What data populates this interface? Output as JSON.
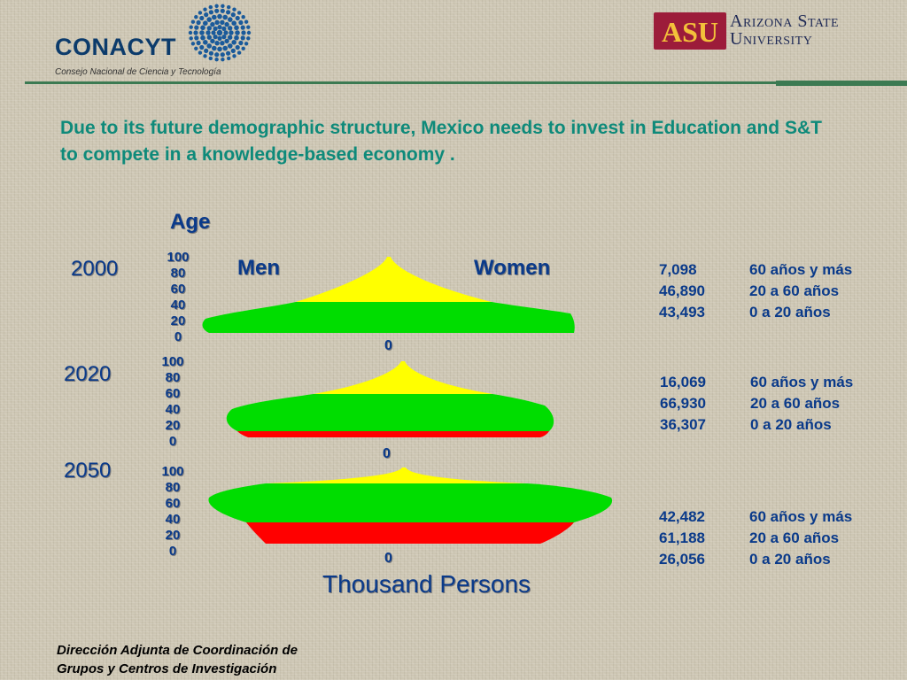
{
  "header": {
    "conacyt": {
      "name": "CONACYT",
      "subtitle": "Consejo Nacional de Ciencia y Tecnología"
    },
    "asu": {
      "mark": "ASU",
      "name_line1": "Arizona State",
      "name_line2": "University"
    }
  },
  "headline": "Due to its future demographic structure, Mexico needs to invest in Education and S&T to compete in a knowledge-based economy .",
  "age_title": "Age",
  "men_label": "Men",
  "women_label": "Women",
  "x_axis_label": "Thousand Persons",
  "age_ticks": [
    "100",
    "80",
    "60",
    "40",
    "20",
    "0"
  ],
  "zero_label": "0",
  "colors": {
    "old": "#ffff00",
    "adult": "#00dd00",
    "young": "#ff0000",
    "text": "#0a3a8a",
    "headline": "#0e8a7a",
    "divider": "#3c7a52"
  },
  "chart_data": {
    "type": "population-pyramid",
    "title": "",
    "xlabel": "Thousand Persons",
    "ylabel": "Age",
    "categories": [
      "60 años y más",
      "20 a 60 años",
      "0 a 20 años"
    ],
    "pyramids": [
      {
        "year": "2000",
        "stats": [
          {
            "value": "7,098",
            "label": "60 años y más"
          },
          {
            "value": "46,890",
            "label": "20 a 60 años"
          },
          {
            "value": "43,493",
            "label": "0 a 20 años"
          }
        ]
      },
      {
        "year": "2020",
        "stats": [
          {
            "value": "16,069",
            "label": "60 años y más"
          },
          {
            "value": "66,930",
            "label": "20 a 60 años"
          },
          {
            "value": "36,307",
            "label": "0 a 20 años"
          }
        ]
      },
      {
        "year": "2050",
        "stats": [
          {
            "value": "42,482",
            "label": "60 años y más"
          },
          {
            "value": "61,188",
            "label": "20 a 60 años"
          },
          {
            "value": "26,056",
            "label": "0 a 20 años"
          }
        ]
      }
    ]
  },
  "footer": {
    "line1": "Dirección Adjunta de Coordinación de",
    "line2": "Grupos y Centros de Investigación"
  }
}
